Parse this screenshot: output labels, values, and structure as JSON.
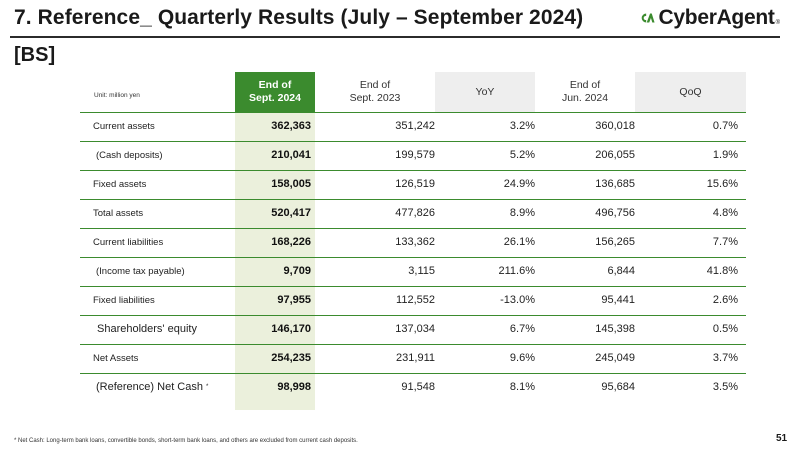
{
  "slide": {
    "title": "7. Reference_ Quarterly Results (July – September 2024)",
    "section": "[BS]",
    "unit_label": "Unit: million yen",
    "page_number": "51",
    "footnote": "*  Net Cash: Long-term bank loans, convertible bonds, short-term bank loans, and others are excluded from current cash deposits."
  },
  "logo": {
    "text": "CyberAgent",
    "mark": "®",
    "icon": "cyberagent-ca-logo-icon",
    "color": "#3b8b2e"
  },
  "colors": {
    "accent_green": "#3b8b2e",
    "highlight_column": "#ebf0dc",
    "header_shaded": "#eeeeee"
  },
  "table": {
    "headers": [
      {
        "line1": "End of",
        "line2": "Sept. 2024"
      },
      {
        "line1": "End of",
        "line2": "Sept. 2023"
      },
      {
        "line1": "YoY",
        "line2": ""
      },
      {
        "line1": "End of",
        "line2": "Jun. 2024"
      },
      {
        "line1": "QoQ",
        "line2": ""
      }
    ],
    "rows": [
      {
        "label": "Current assets",
        "values": [
          "362,363",
          "351,242",
          "3.2%",
          "360,018",
          "0.7%"
        ]
      },
      {
        "label": "(Cash deposits)",
        "values": [
          "210,041",
          "199,579",
          "5.2%",
          "206,055",
          "1.9%"
        ]
      },
      {
        "label": "Fixed assets",
        "values": [
          "158,005",
          "126,519",
          "24.9%",
          "136,685",
          "15.6%"
        ]
      },
      {
        "label": "Total assets",
        "values": [
          "520,417",
          "477,826",
          "8.9%",
          "496,756",
          "4.8%"
        ]
      },
      {
        "label": "Current liabilities",
        "values": [
          "168,226",
          "133,362",
          "26.1%",
          "156,265",
          "7.7%"
        ]
      },
      {
        "label": "(Income tax payable)",
        "values": [
          "9,709",
          "3,115",
          "211.6%",
          "6,844",
          "41.8%"
        ]
      },
      {
        "label": "Fixed liabilities",
        "values": [
          "97,955",
          "112,552",
          "-13.0%",
          "95,441",
          "2.6%"
        ]
      },
      {
        "label": "Shareholders' equity",
        "values": [
          "146,170",
          "137,034",
          "6.7%",
          "145,398",
          "0.5%"
        ]
      },
      {
        "label": "Net Assets",
        "values": [
          "254,235",
          "231,911",
          "9.6%",
          "245,049",
          "3.7%"
        ]
      },
      {
        "label": "(Reference) Net Cash",
        "label_mark": "*",
        "values": [
          "98,998",
          "91,548",
          "8.1%",
          "95,684",
          "3.5%"
        ]
      }
    ]
  }
}
